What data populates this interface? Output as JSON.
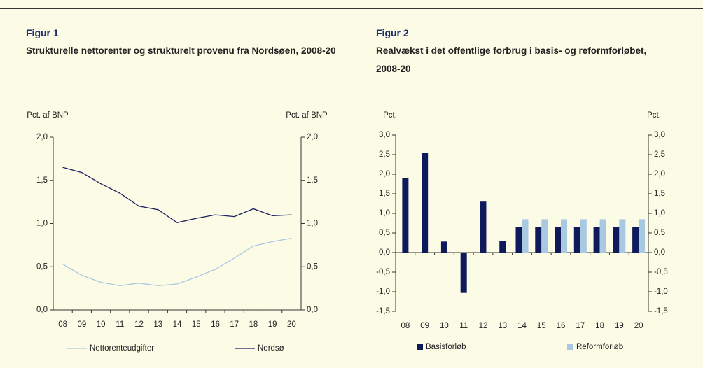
{
  "chart_data": [
    {
      "type": "line",
      "figure_label": "Figur 1",
      "title": "Strukturelle nettorenter og strukturelt provenu fra Nordsøen, 2008-20",
      "ylabel": "Pct. af BNP",
      "y2label": "Pct. af BNP",
      "categories": [
        "08",
        "09",
        "10",
        "11",
        "12",
        "13",
        "14",
        "15",
        "16",
        "17",
        "18",
        "19",
        "20"
      ],
      "series": [
        {
          "name": "Nettorenteudgifter",
          "color": "#a9c9e2",
          "values": [
            0.53,
            0.4,
            0.32,
            0.28,
            0.31,
            0.28,
            0.3,
            0.38,
            0.47,
            0.6,
            0.74,
            0.79,
            0.83
          ]
        },
        {
          "name": "Nordsø",
          "color": "#1a1f5e",
          "values": [
            1.65,
            1.59,
            1.46,
            1.35,
            1.2,
            1.16,
            1.01,
            1.06,
            1.1,
            1.08,
            1.17,
            1.09,
            1.1
          ]
        }
      ],
      "ylim": [
        0,
        2
      ],
      "yticks": [
        {
          "value": 0,
          "label": "0,0"
        },
        {
          "value": 0.5,
          "label": "0,5"
        },
        {
          "value": 1,
          "label": "1,0"
        },
        {
          "value": 1.5,
          "label": "1,5"
        },
        {
          "value": 2,
          "label": "2,0"
        }
      ],
      "y2lim": [
        0,
        2
      ],
      "y2ticks": [
        {
          "value": 0,
          "label": "0,0"
        },
        {
          "value": 0.5,
          "label": "0,5"
        },
        {
          "value": 1,
          "label": "1,0"
        },
        {
          "value": 1.5,
          "label": "1,5"
        },
        {
          "value": 2,
          "label": "2,0"
        }
      ]
    },
    {
      "type": "bar",
      "figure_label": "Figur 2",
      "title": "Realvækst i det offentlige forbrug i basis- og reformforløbet, 2008-20",
      "ylabel": "Pct.",
      "y2label": "Pct.",
      "categories": [
        "08",
        "09",
        "10",
        "11",
        "12",
        "13",
        "14",
        "15",
        "16",
        "17",
        "18",
        "19",
        "20"
      ],
      "series": [
        {
          "name": "Basisforløb",
          "color": "#0f1a5a",
          "values": [
            1.9,
            2.55,
            0.28,
            -1.03,
            1.3,
            0.3,
            0.65,
            0.65,
            0.65,
            0.65,
            0.65,
            0.65,
            0.65
          ]
        },
        {
          "name": "Reformforløb",
          "color": "#a9c9e2",
          "values": [
            null,
            null,
            null,
            null,
            null,
            null,
            0.85,
            0.85,
            0.85,
            0.85,
            0.85,
            0.85,
            0.85
          ]
        }
      ],
      "ylim": [
        -1.5,
        3
      ],
      "yticks": [
        {
          "value": -1.5,
          "label": "-1,5"
        },
        {
          "value": -1,
          "label": "-1,0"
        },
        {
          "value": -0.5,
          "label": "-0,5"
        },
        {
          "value": 0,
          "label": "0,0"
        },
        {
          "value": 0.5,
          "label": "0,5"
        },
        {
          "value": 1,
          "label": "1,0"
        },
        {
          "value": 1.5,
          "label": "1,5"
        },
        {
          "value": 2,
          "label": "2,0"
        },
        {
          "value": 2.5,
          "label": "2,5"
        },
        {
          "value": 3,
          "label": "3,0"
        }
      ],
      "y2lim": [
        -1.5,
        3
      ],
      "y2ticks": [
        {
          "value": -1.5,
          "label": "-1,5"
        },
        {
          "value": -1,
          "label": "-1,0"
        },
        {
          "value": -0.5,
          "label": "-0,5"
        },
        {
          "value": 0,
          "label": "0,0"
        },
        {
          "value": 0.5,
          "label": "0,5"
        },
        {
          "value": 1,
          "label": "1,0"
        },
        {
          "value": 1.5,
          "label": "1,5"
        },
        {
          "value": 2,
          "label": "2,0"
        },
        {
          "value": 2.5,
          "label": "2,5"
        },
        {
          "value": 3,
          "label": "3,0"
        }
      ]
    }
  ]
}
